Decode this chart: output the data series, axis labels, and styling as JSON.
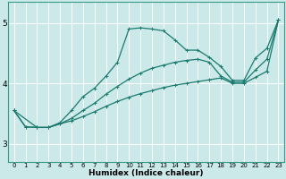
{
  "xlabel": "Humidex (Indice chaleur)",
  "xlim": [
    -0.5,
    23.5
  ],
  "ylim": [
    2.7,
    5.35
  ],
  "yticks": [
    3,
    4,
    5
  ],
  "xticks": [
    0,
    1,
    2,
    3,
    4,
    5,
    6,
    7,
    8,
    9,
    10,
    11,
    12,
    13,
    14,
    15,
    16,
    17,
    18,
    19,
    20,
    21,
    22,
    23
  ],
  "bg_color": "#cce9e9",
  "grid_color": "#ffffff",
  "line_color": "#1a7a6e",
  "lines": [
    {
      "x": [
        0,
        1,
        2,
        3,
        4,
        5,
        6,
        7,
        8,
        9,
        10,
        11,
        12,
        13,
        14,
        15,
        16,
        17,
        18,
        19,
        20,
        21,
        22,
        23
      ],
      "y": [
        3.55,
        3.28,
        3.27,
        3.27,
        3.33,
        3.38,
        3.45,
        3.53,
        3.62,
        3.7,
        3.77,
        3.83,
        3.88,
        3.93,
        3.97,
        4.0,
        4.03,
        4.06,
        4.09,
        4.0,
        4.0,
        4.1,
        4.2,
        5.05
      ]
    },
    {
      "x": [
        0,
        1,
        2,
        3,
        4,
        5,
        6,
        7,
        8,
        9,
        10,
        11,
        12,
        13,
        14,
        15,
        16,
        17,
        18,
        19,
        20,
        21,
        22,
        23
      ],
      "y": [
        3.55,
        3.28,
        3.27,
        3.27,
        3.33,
        3.42,
        3.55,
        3.67,
        3.82,
        3.95,
        4.07,
        4.17,
        4.25,
        4.3,
        4.35,
        4.38,
        4.4,
        4.35,
        4.12,
        4.02,
        4.02,
        4.22,
        4.4,
        5.05
      ]
    },
    {
      "x": [
        0,
        2,
        3,
        4,
        5,
        6,
        7,
        8,
        9,
        10,
        11,
        12,
        13,
        14,
        15,
        16,
        17,
        18,
        19,
        20,
        21,
        22,
        23
      ],
      "y": [
        3.55,
        3.27,
        3.27,
        3.35,
        3.55,
        3.78,
        3.92,
        4.12,
        4.35,
        4.9,
        4.92,
        4.9,
        4.87,
        4.72,
        4.55,
        4.55,
        4.43,
        4.28,
        4.05,
        4.05,
        4.42,
        4.58,
        5.05
      ]
    }
  ]
}
